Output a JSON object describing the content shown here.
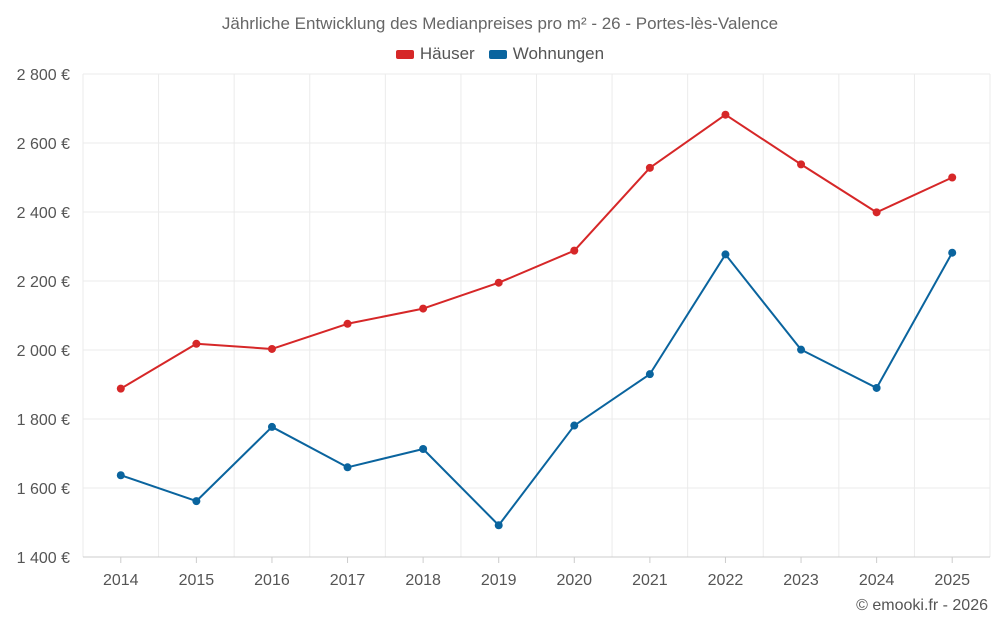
{
  "chart_data": {
    "type": "line",
    "title": "Jährliche Entwicklung des Medianpreises pro m² - 26 - Portes-lès-Valence",
    "categories": [
      "2014",
      "2015",
      "2016",
      "2017",
      "2018",
      "2019",
      "2020",
      "2021",
      "2022",
      "2023",
      "2024",
      "2025"
    ],
    "series": [
      {
        "name": "Häuser",
        "color": "#d62728",
        "values": [
          1888,
          2018,
          2003,
          2076,
          2120,
          2195,
          2288,
          2528,
          2682,
          2538,
          2399,
          2500
        ]
      },
      {
        "name": "Wohnungen",
        "color": "#0a649e",
        "values": [
          1637,
          1562,
          1777,
          1660,
          1713,
          1492,
          1781,
          1930,
          2277,
          2001,
          1890,
          2282
        ]
      }
    ],
    "yticks": [
      1400,
      1600,
      1800,
      2000,
      2200,
      2400,
      2600,
      2800
    ],
    "ytick_labels": [
      "1 400 €",
      "1 600 €",
      "1 800 €",
      "2 000 €",
      "2 200 €",
      "2 400 €",
      "2 600 €",
      "2 800 €"
    ],
    "ylim": [
      1400,
      2800
    ],
    "xlabel": "",
    "ylabel": "",
    "grid": true,
    "legend_position": "top-center"
  },
  "credit": "© emooki.fr - 2026"
}
